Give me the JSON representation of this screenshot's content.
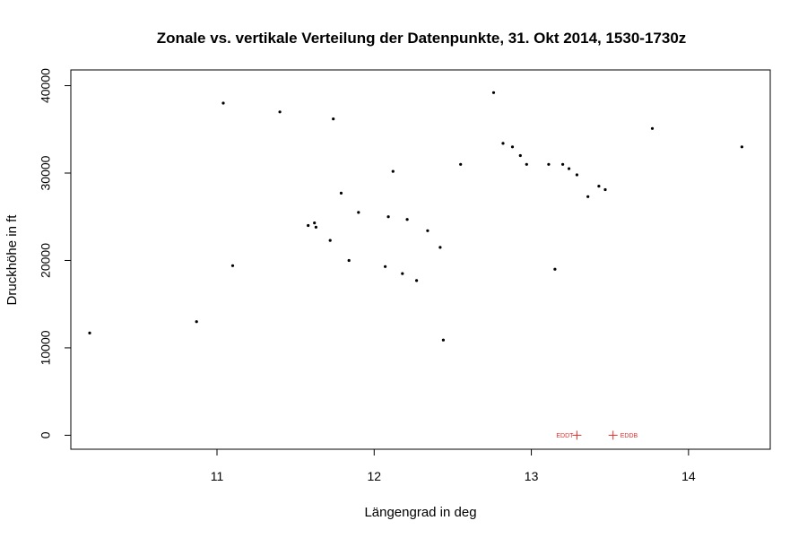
{
  "chart_data": {
    "type": "scatter",
    "title": "Zonale vs. vertikale Verteilung der Datenpunkte, 31. Okt 2014, 1530-1730z",
    "xlabel": "Längengrad in deg",
    "ylabel": "Druckhöhe in ft",
    "xlim": [
      10.07,
      14.52
    ],
    "ylim": [
      -1600,
      41800
    ],
    "x_ticks": [
      11,
      12,
      13,
      14
    ],
    "y_ticks": [
      0,
      10000,
      20000,
      30000,
      40000
    ],
    "x_tick_labels": [
      "11",
      "12",
      "13",
      "14"
    ],
    "y_tick_labels": [
      "0",
      "10000",
      "20000",
      "30000",
      "40000"
    ],
    "grid": false,
    "point_color": "#000000",
    "marker_color": "#e0302f",
    "airports": [
      {
        "label": "EDDT",
        "x": 13.29,
        "y": 0
      },
      {
        "label": "EDDB",
        "x": 13.52,
        "y": 0
      }
    ],
    "series": [
      {
        "points": [
          [
            10.19,
            11700
          ],
          [
            10.87,
            13000
          ],
          [
            11.04,
            38000
          ],
          [
            11.1,
            19400
          ],
          [
            11.4,
            37000
          ],
          [
            11.58,
            24000
          ],
          [
            11.62,
            24300
          ],
          [
            11.63,
            23800
          ],
          [
            11.72,
            22300
          ],
          [
            11.74,
            36200
          ],
          [
            11.79,
            27700
          ],
          [
            11.84,
            20000
          ],
          [
            11.9,
            25500
          ],
          [
            12.07,
            19300
          ],
          [
            12.09,
            25000
          ],
          [
            12.12,
            30200
          ],
          [
            12.18,
            18500
          ],
          [
            12.21,
            24700
          ],
          [
            12.27,
            17700
          ],
          [
            12.34,
            23400
          ],
          [
            12.42,
            21500
          ],
          [
            12.44,
            10900
          ],
          [
            12.55,
            31000
          ],
          [
            12.76,
            39200
          ],
          [
            12.82,
            33400
          ],
          [
            12.88,
            33000
          ],
          [
            12.93,
            32000
          ],
          [
            12.97,
            31000
          ],
          [
            13.11,
            31000
          ],
          [
            13.15,
            19000
          ],
          [
            13.2,
            31000
          ],
          [
            13.24,
            30500
          ],
          [
            13.29,
            29800
          ],
          [
            13.36,
            27300
          ],
          [
            13.43,
            28500
          ],
          [
            13.47,
            28100
          ],
          [
            13.77,
            35100
          ],
          [
            14.34,
            33000
          ]
        ]
      }
    ]
  }
}
